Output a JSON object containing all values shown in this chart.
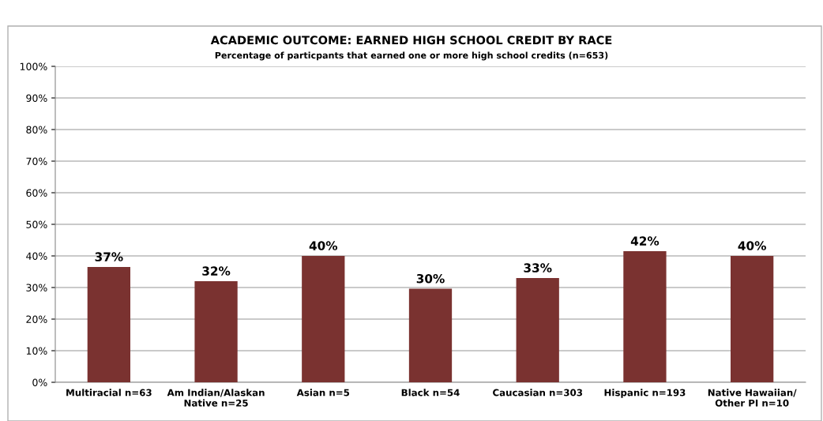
{
  "chart_data": {
    "type": "bar",
    "title": "ACADEMIC OUTCOME: EARNED HIGH SCHOOL CREDIT BY RACE",
    "subtitle": "Percentage of particpants that earned one or more high school credits (n=653)",
    "categories": [
      "Multiracial n=63",
      "Am Indian/Alaskan\nNative n=25",
      "Asian n=5",
      "Black n=54",
      "Caucasian n=303",
      "Hispanic n=193",
      "Native Hawaiian/\nOther PI n=10"
    ],
    "values": [
      36.5,
      32,
      40,
      29.6,
      33,
      41.5,
      40
    ],
    "value_labels": [
      "37%",
      "32%",
      "40%",
      "30%",
      "33%",
      "42%",
      "40%"
    ],
    "color": "#7a3230",
    "ylim": [
      0,
      100
    ],
    "yticks": [
      {
        "value": 0,
        "label": "0%"
      },
      {
        "value": 10,
        "label": "10%"
      },
      {
        "value": 20,
        "label": "20%"
      },
      {
        "value": 30,
        "label": "30%"
      },
      {
        "value": 40,
        "label": "40%"
      },
      {
        "value": 50,
        "label": "50%"
      },
      {
        "value": 60,
        "label": "60%"
      },
      {
        "value": 70,
        "label": "70%"
      },
      {
        "value": 80,
        "label": "80%"
      },
      {
        "value": 90,
        "label": "90%"
      },
      {
        "value": 100,
        "label": "100%"
      }
    ],
    "grid": "y",
    "legend": false
  }
}
